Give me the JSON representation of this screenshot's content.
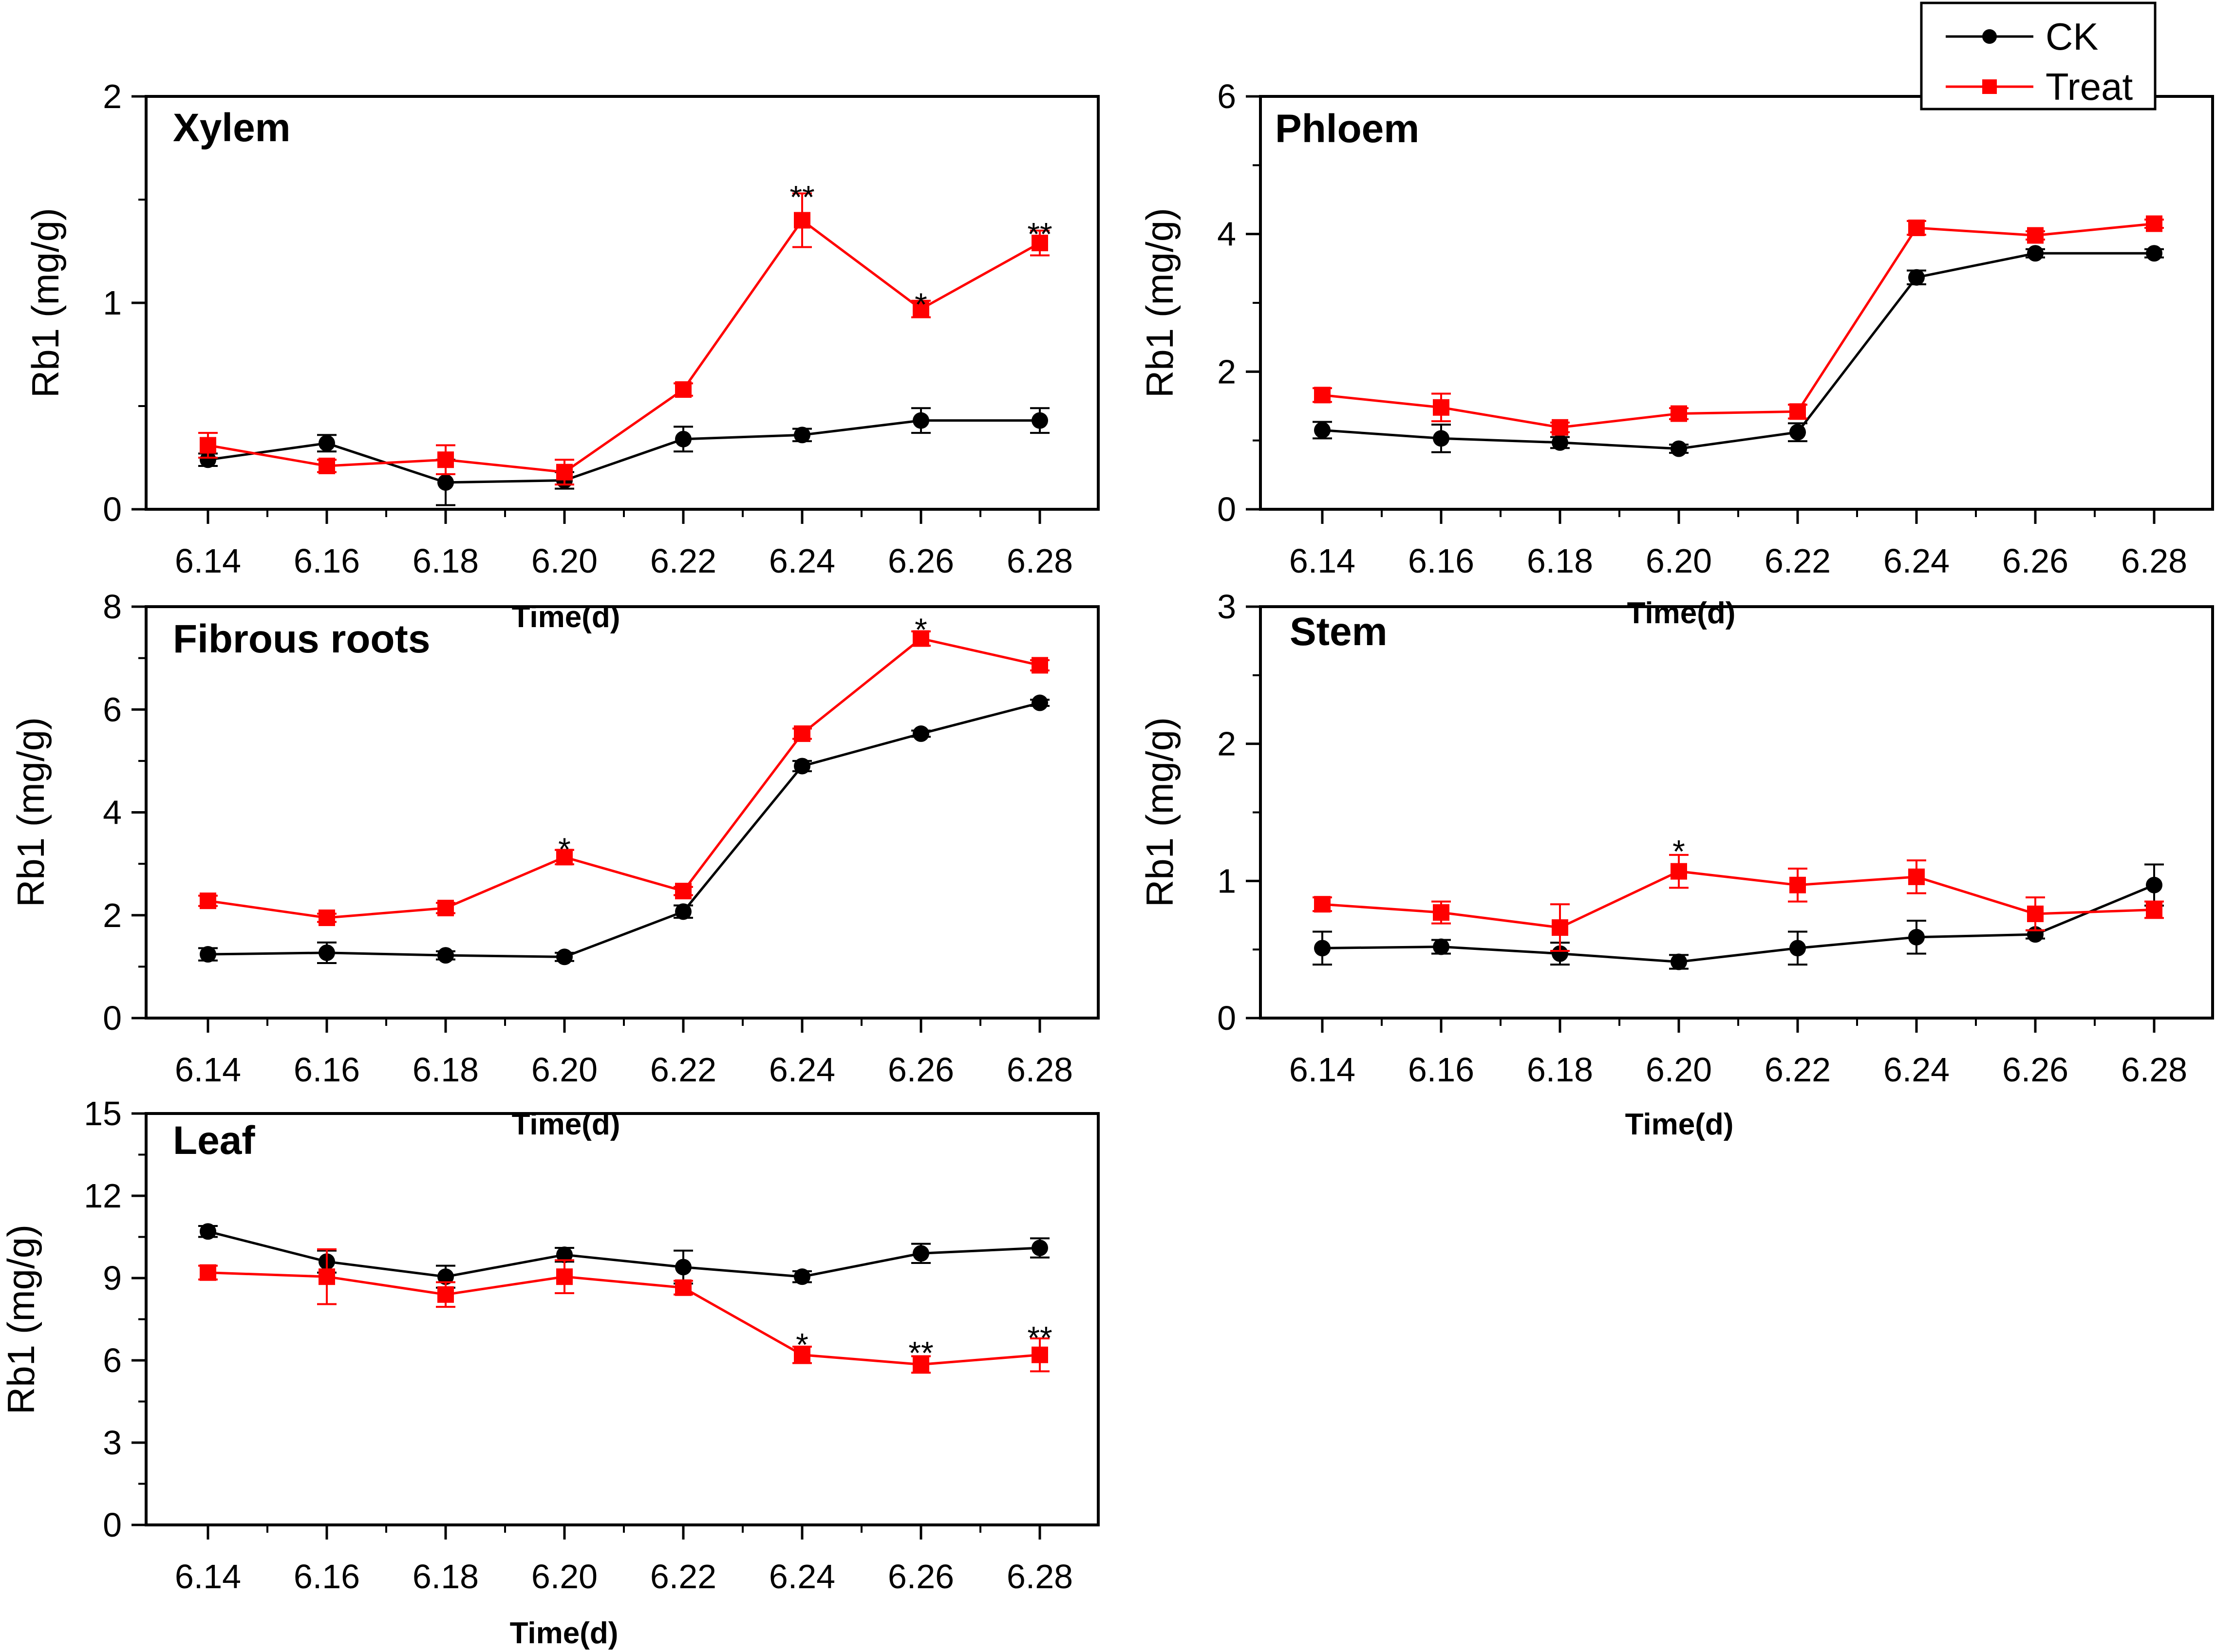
{
  "figure_colors": {
    "CK": "#000000",
    "Treat": "#ff0000"
  },
  "legend": {
    "ck_label": "CK",
    "treat_label": "Treat"
  },
  "chart_data": [
    {
      "type": "line",
      "title": "Xylem",
      "xlabel": "Time(d)",
      "ylabel": "Rb1 (mg/g)",
      "categories": [
        "6.14",
        "6.16",
        "6.18",
        "6.20",
        "6.22",
        "6.24",
        "6.26",
        "6.28"
      ],
      "ylim": [
        0,
        2
      ],
      "yticks": [
        0,
        1,
        2
      ],
      "series": [
        {
          "name": "CK",
          "values": [
            0.24,
            0.32,
            0.13,
            0.14,
            0.34,
            0.36,
            0.43,
            0.43
          ],
          "errors": [
            0.03,
            0.04,
            0.11,
            0.04,
            0.06,
            0.03,
            0.06,
            0.06
          ]
        },
        {
          "name": "Treat",
          "values": [
            0.31,
            0.21,
            0.24,
            0.18,
            0.58,
            1.4,
            0.97,
            1.29
          ],
          "errors": [
            0.06,
            0.03,
            0.07,
            0.06,
            0.03,
            0.13,
            0.04,
            0.06
          ]
        }
      ],
      "annotations": [
        {
          "x": "6.24",
          "text": "**",
          "y": 1.53
        },
        {
          "x": "6.26",
          "text": "*",
          "y": 1.01
        },
        {
          "x": "6.28",
          "text": "**",
          "y": 1.35
        }
      ]
    },
    {
      "type": "line",
      "title": "Phloem",
      "xlabel": "Time(d)",
      "ylabel": "Rb1 (mg/g)",
      "categories": [
        "6.14",
        "6.16",
        "6.18",
        "6.20",
        "6.22",
        "6.24",
        "6.26",
        "6.28"
      ],
      "ylim": [
        0,
        6
      ],
      "yticks": [
        0,
        2,
        4,
        6
      ],
      "series": [
        {
          "name": "CK",
          "values": [
            1.15,
            1.03,
            0.97,
            0.88,
            1.12,
            3.37,
            3.72,
            3.72
          ],
          "errors": [
            0.12,
            0.2,
            0.08,
            0.06,
            0.13,
            0.1,
            0.06,
            0.06
          ]
        },
        {
          "name": "Treat",
          "values": [
            1.66,
            1.48,
            1.19,
            1.39,
            1.42,
            4.09,
            3.98,
            4.15
          ],
          "errors": [
            0.1,
            0.2,
            0.07,
            0.08,
            0.1,
            0.1,
            0.06,
            0.06
          ]
        }
      ],
      "annotations": []
    },
    {
      "type": "line",
      "title": "Fibrous roots",
      "xlabel": "Time(d)",
      "ylabel": "Rb1 (mg/g)",
      "categories": [
        "6.14",
        "6.16",
        "6.18",
        "6.20",
        "6.22",
        "6.24",
        "6.26",
        "6.28"
      ],
      "ylim": [
        0,
        8
      ],
      "yticks": [
        0,
        2,
        4,
        6,
        8
      ],
      "series": [
        {
          "name": "CK",
          "values": [
            1.24,
            1.27,
            1.22,
            1.19,
            2.07,
            4.9,
            5.53,
            6.13
          ],
          "errors": [
            0.12,
            0.2,
            0.08,
            0.08,
            0.12,
            0.1,
            0.06,
            0.06
          ]
        },
        {
          "name": "Treat",
          "values": [
            2.28,
            1.95,
            2.14,
            3.13,
            2.47,
            5.53,
            7.38,
            6.86
          ],
          "errors": [
            0.1,
            0.08,
            0.1,
            0.14,
            0.08,
            0.1,
            0.14,
            0.1
          ]
        }
      ],
      "annotations": [
        {
          "x": "6.20",
          "text": "*",
          "y": 3.35
        },
        {
          "x": "6.26",
          "text": "*",
          "y": 7.62
        }
      ]
    },
    {
      "type": "line",
      "title": "Stem",
      "xlabel": "Time(d)",
      "ylabel": "Rb1 (mg/g)",
      "categories": [
        "6.14",
        "6.16",
        "6.18",
        "6.20",
        "6.22",
        "6.24",
        "6.26",
        "6.28"
      ],
      "ylim": [
        0,
        3
      ],
      "yticks": [
        0,
        1,
        2,
        3
      ],
      "series": [
        {
          "name": "CK",
          "values": [
            0.51,
            0.52,
            0.47,
            0.41,
            0.51,
            0.59,
            0.61,
            0.97
          ],
          "errors": [
            0.12,
            0.05,
            0.08,
            0.05,
            0.12,
            0.12,
            0.03,
            0.15
          ]
        },
        {
          "name": "Treat",
          "values": [
            0.83,
            0.77,
            0.66,
            1.07,
            0.97,
            1.03,
            0.76,
            0.79
          ],
          "errors": [
            0.05,
            0.08,
            0.17,
            0.12,
            0.12,
            0.12,
            0.12,
            0.06
          ]
        }
      ],
      "annotations": [
        {
          "x": "6.20",
          "text": "*",
          "y": 1.24
        }
      ]
    },
    {
      "type": "line",
      "title": "Leaf",
      "xlabel": "Time(d)",
      "ylabel": "Rb1 (mg/g)",
      "categories": [
        "6.14",
        "6.16",
        "6.18",
        "6.20",
        "6.22",
        "6.24",
        "6.26",
        "6.28"
      ],
      "ylim": [
        0,
        15
      ],
      "yticks": [
        0,
        3,
        6,
        9,
        12,
        15
      ],
      "series": [
        {
          "name": "CK",
          "values": [
            10.7,
            9.6,
            9.05,
            9.85,
            9.4,
            9.05,
            9.9,
            10.1
          ],
          "errors": [
            0.2,
            0.4,
            0.4,
            0.25,
            0.6,
            0.2,
            0.35,
            0.35
          ]
        },
        {
          "name": "Treat",
          "values": [
            9.2,
            9.05,
            8.4,
            9.05,
            8.65,
            6.2,
            5.85,
            6.2
          ],
          "errors": [
            0.25,
            1.0,
            0.45,
            0.6,
            0.25,
            0.3,
            0.3,
            0.6
          ]
        }
      ],
      "annotations": [
        {
          "x": "6.24",
          "text": "*",
          "y": 6.7
        },
        {
          "x": "6.26",
          "text": "**",
          "y": 6.4
        },
        {
          "x": "6.28",
          "text": "**",
          "y": 6.95
        }
      ]
    }
  ]
}
